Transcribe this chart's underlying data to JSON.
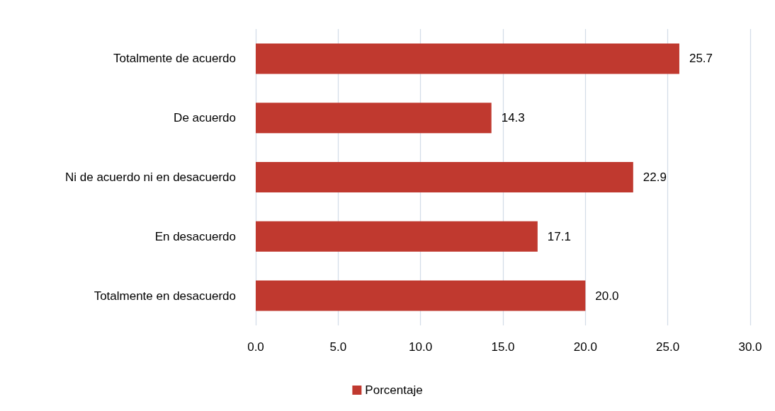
{
  "chart_data": {
    "type": "bar",
    "orientation": "horizontal",
    "categories": [
      "Totalmente de acuerdo",
      "De acuerdo",
      "Ni de acuerdo ni en desacuerdo",
      "En desacuerdo",
      "Totalmente en desacuerdo"
    ],
    "series": [
      {
        "name": "Porcentaje",
        "color": "#c0392f",
        "values": [
          25.7,
          14.3,
          22.9,
          17.1,
          20.0
        ],
        "value_labels": [
          "25.7",
          "14.3",
          "22.9",
          "17.1",
          "20.0"
        ]
      }
    ],
    "xlim": [
      0,
      30
    ],
    "xticks": [
      {
        "value": 0,
        "label": "0.0"
      },
      {
        "value": 5,
        "label": "5.0"
      },
      {
        "value": 10,
        "label": "10.0"
      },
      {
        "value": 15,
        "label": "15.0"
      },
      {
        "value": 20,
        "label": "20.0"
      },
      {
        "value": 25,
        "label": "25.0"
      },
      {
        "value": 30,
        "label": "30.0"
      }
    ],
    "grid": "x",
    "legend": "bottom"
  }
}
